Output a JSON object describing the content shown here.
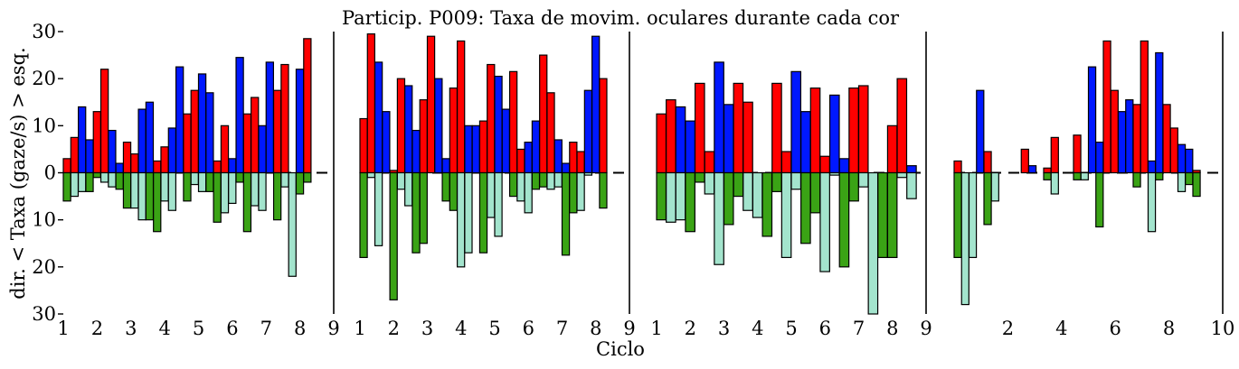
{
  "chart_data": {
    "type": "bar",
    "title": "Particip. P009: Taxa de movim. oculares durante cada cor",
    "xlabel": "Ciclo",
    "ylabel": "dir. < Taxa (gaze/s) > esq.",
    "ylim": [
      -30,
      30
    ],
    "y_ticks": [
      {
        "value": 30,
        "label": "30"
      },
      {
        "value": 20,
        "label": "20"
      },
      {
        "value": 10,
        "label": "10"
      },
      {
        "value": 0,
        "label": "0"
      },
      {
        "value": -10,
        "label": "10"
      },
      {
        "value": -20,
        "label": "20"
      },
      {
        "value": -30,
        "label": "30"
      }
    ],
    "colors": {
      "red": "#ff0000",
      "blue": "#0018ff",
      "green": "#3aa315",
      "teal": "#a3e4cd"
    },
    "panels": [
      {
        "xlim": [
          1,
          9
        ],
        "x_ticks": [
          "1",
          "2",
          "3",
          "4",
          "5",
          "6",
          "7",
          "8",
          "9"
        ],
        "cycles": [
          {
            "up": [
              3,
              7.5,
              14,
              7
            ],
            "down": [
              -6,
              -5,
              -4,
              -4
            ]
          },
          {
            "up": [
              13,
              22,
              9,
              2
            ],
            "down": [
              -1,
              -2,
              -3,
              -3.5
            ]
          },
          {
            "up": [
              6.5,
              4,
              13.5,
              15
            ],
            "down": [
              -7.5,
              -7.5,
              -10,
              -10
            ]
          },
          {
            "up": [
              2.5,
              5.5,
              9.5,
              22.5
            ],
            "down": [
              -12.5,
              -6,
              -8,
              0
            ]
          },
          {
            "up": [
              12.5,
              17.5,
              21,
              17
            ],
            "down": [
              -6,
              -2.5,
              -4,
              -4
            ]
          },
          {
            "up": [
              2.5,
              10,
              3,
              24.5
            ],
            "down": [
              -10.5,
              -8.5,
              -6.5,
              -2
            ]
          },
          {
            "up": [
              12.5,
              16,
              10,
              23.5
            ],
            "down": [
              -12.5,
              -7,
              -8,
              0
            ]
          },
          {
            "up": [
              17.5,
              23,
              0,
              22
            ],
            "down": [
              -10,
              -3,
              -22,
              -4.5
            ]
          },
          {
            "up": [
              28.5,
              0,
              0,
              0
            ],
            "down": [
              -2,
              0,
              0,
              0
            ]
          }
        ]
      },
      {
        "xlim": [
          1,
          9
        ],
        "x_ticks": [
          "1",
          "2",
          "3",
          "4",
          "5",
          "6",
          "7",
          "8",
          "9"
        ],
        "cycles": [
          {
            "up": [
              11.5,
              29.5,
              23.5,
              13
            ],
            "down": [
              -18,
              -1,
              -15.5,
              0
            ]
          },
          {
            "up": [
              0.5,
              20,
              18.5,
              9
            ],
            "down": [
              -27,
              -3.5,
              -7,
              -17
            ]
          },
          {
            "up": [
              15.5,
              29,
              20,
              3
            ],
            "down": [
              -15,
              0,
              0,
              -6
            ]
          },
          {
            "up": [
              18,
              28,
              10,
              10
            ],
            "down": [
              -8,
              -20,
              -17,
              0
            ]
          },
          {
            "up": [
              11,
              23,
              20.5,
              13.5
            ],
            "down": [
              -17,
              -9.5,
              -13.5,
              0
            ]
          },
          {
            "up": [
              21.5,
              5,
              6.5,
              11
            ],
            "down": [
              -5,
              -6,
              -8.5,
              -3.5
            ]
          },
          {
            "up": [
              25,
              17,
              7,
              2
            ],
            "down": [
              -3,
              -3.5,
              -3,
              -17.5
            ]
          },
          {
            "up": [
              6.5,
              4.5,
              17.5,
              29
            ],
            "down": [
              -8.5,
              -8,
              -0.5,
              0
            ]
          },
          {
            "up": [
              20,
              0,
              0,
              0
            ],
            "down": [
              -7.5,
              0,
              0,
              0
            ]
          }
        ]
      },
      {
        "xlim": [
          1,
          9
        ],
        "x_ticks": [
          "1",
          "2",
          "3",
          "4",
          "5",
          "6",
          "7",
          "8",
          "9"
        ],
        "cycles": [
          {
            "up": [
              12.5,
              15.5,
              14,
              11
            ],
            "down": [
              -10,
              -10.5,
              -10,
              -12.5
            ]
          },
          {
            "up": [
              19,
              4.5,
              23.5,
              14.5
            ],
            "down": [
              -2,
              -4.5,
              -19.5,
              -11
            ]
          },
          {
            "up": [
              19,
              15,
              0,
              0
            ],
            "down": [
              -5,
              -8,
              -9.5,
              -13.5
            ]
          },
          {
            "up": [
              19,
              4.5,
              21.5,
              13
            ],
            "down": [
              -4,
              -18,
              -3.5,
              -15
            ]
          },
          {
            "up": [
              18,
              3.5,
              16.5,
              3
            ],
            "down": [
              -8.5,
              -21,
              -0.5,
              -20
            ]
          },
          {
            "up": [
              18,
              18.5,
              0,
              0
            ],
            "down": [
              -6,
              -3,
              -30,
              -18
            ]
          },
          {
            "up": [
              10,
              20,
              1.5,
              0
            ],
            "down": [
              -18,
              -1,
              -5.5,
              0
            ]
          }
        ]
      },
      {
        "xlim": [
          0,
          10
        ],
        "x_ticks": [
          "2",
          "4",
          "6",
          "8",
          "10"
        ],
        "cycles": [
          {
            "up": [
              2.5,
              0,
              0,
              17.5
            ],
            "down": [
              -18,
              -28,
              -18,
              0
            ]
          },
          {
            "up": [
              4.5,
              0,
              0,
              0
            ],
            "down": [
              -11,
              -6,
              0,
              0
            ]
          },
          {
            "up": [
              0,
              5,
              1.5,
              0
            ],
            "down": [
              0,
              0,
              0,
              0
            ]
          },
          {
            "up": [
              1,
              7.5,
              0,
              0
            ],
            "down": [
              -1.5,
              -4.5,
              0,
              0
            ]
          },
          {
            "up": [
              8,
              0,
              22.5,
              6.5
            ],
            "down": [
              -1.5,
              -1.5,
              0,
              -11.5
            ]
          },
          {
            "up": [
              28,
              17.5,
              13,
              15.5
            ],
            "down": [
              0,
              0,
              0,
              0
            ]
          },
          {
            "up": [
              14.5,
              28,
              2.5,
              25.5
            ],
            "down": [
              -3,
              0,
              -12.5,
              -1.5
            ]
          },
          {
            "up": [
              14.5,
              9.5,
              6,
              5
            ],
            "down": [
              0,
              0,
              -4,
              -2.5
            ]
          },
          {
            "up": [
              0.5,
              0,
              0,
              0
            ],
            "down": [
              -5,
              0,
              0,
              0
            ]
          }
        ]
      }
    ]
  }
}
